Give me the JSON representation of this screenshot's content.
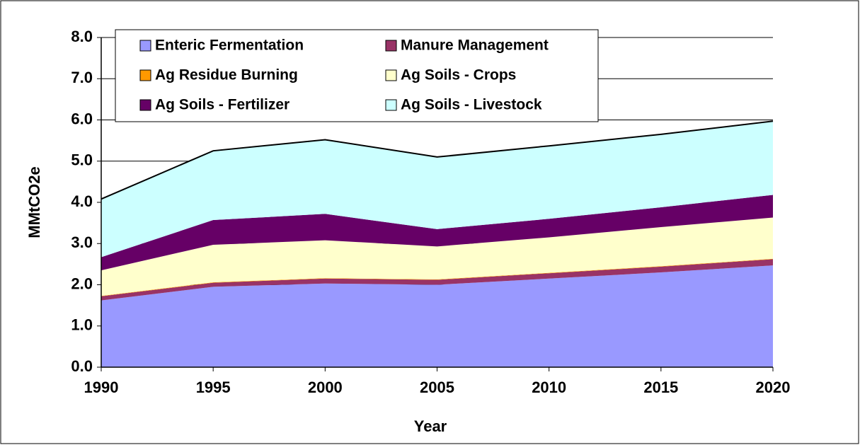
{
  "chart_data": {
    "type": "stacked_area",
    "x_label": "Year",
    "y_label": "MMtCO2e",
    "x": [
      1990,
      1995,
      2000,
      2005,
      2010,
      2015,
      2020
    ],
    "xlim": [
      1990,
      2020
    ],
    "ylim": [
      0,
      8
    ],
    "yticks": [
      {
        "value": 0,
        "label": "0.0"
      },
      {
        "value": 1,
        "label": "1.0"
      },
      {
        "value": 2,
        "label": "2.0"
      },
      {
        "value": 3,
        "label": "3.0"
      },
      {
        "value": 4,
        "label": "4.0"
      },
      {
        "value": 5,
        "label": "5.0"
      },
      {
        "value": 6,
        "label": "6.0"
      },
      {
        "value": 7,
        "label": "7.0"
      },
      {
        "value": 8,
        "label": "8.0"
      }
    ],
    "grid": true,
    "legend": "top",
    "series": [
      {
        "name": "Enteric Fermentation",
        "color": "#9999ff",
        "values": [
          1.62,
          1.95,
          2.03,
          2.0,
          2.15,
          2.3,
          2.47
        ]
      },
      {
        "name": "Manure Management",
        "color": "#993366",
        "values": [
          0.1,
          0.1,
          0.12,
          0.12,
          0.13,
          0.14,
          0.15
        ]
      },
      {
        "name": "Ag Residue Burning",
        "color": "#ff9900",
        "values": [
          0.01,
          0.01,
          0.01,
          0.01,
          0.01,
          0.01,
          0.01
        ]
      },
      {
        "name": "Ag Soils - Crops",
        "color": "#ffffcc",
        "values": [
          0.62,
          0.91,
          0.92,
          0.8,
          0.86,
          0.95,
          1.0
        ]
      },
      {
        "name": "Ag Soils - Fertilizer",
        "color": "#660066",
        "values": [
          0.32,
          0.6,
          0.64,
          0.42,
          0.45,
          0.48,
          0.55
        ]
      },
      {
        "name": "Ag Soils - Livestock",
        "color": "#ccffff",
        "values": [
          1.41,
          1.68,
          1.8,
          1.75,
          1.77,
          1.77,
          1.79
        ]
      }
    ]
  }
}
